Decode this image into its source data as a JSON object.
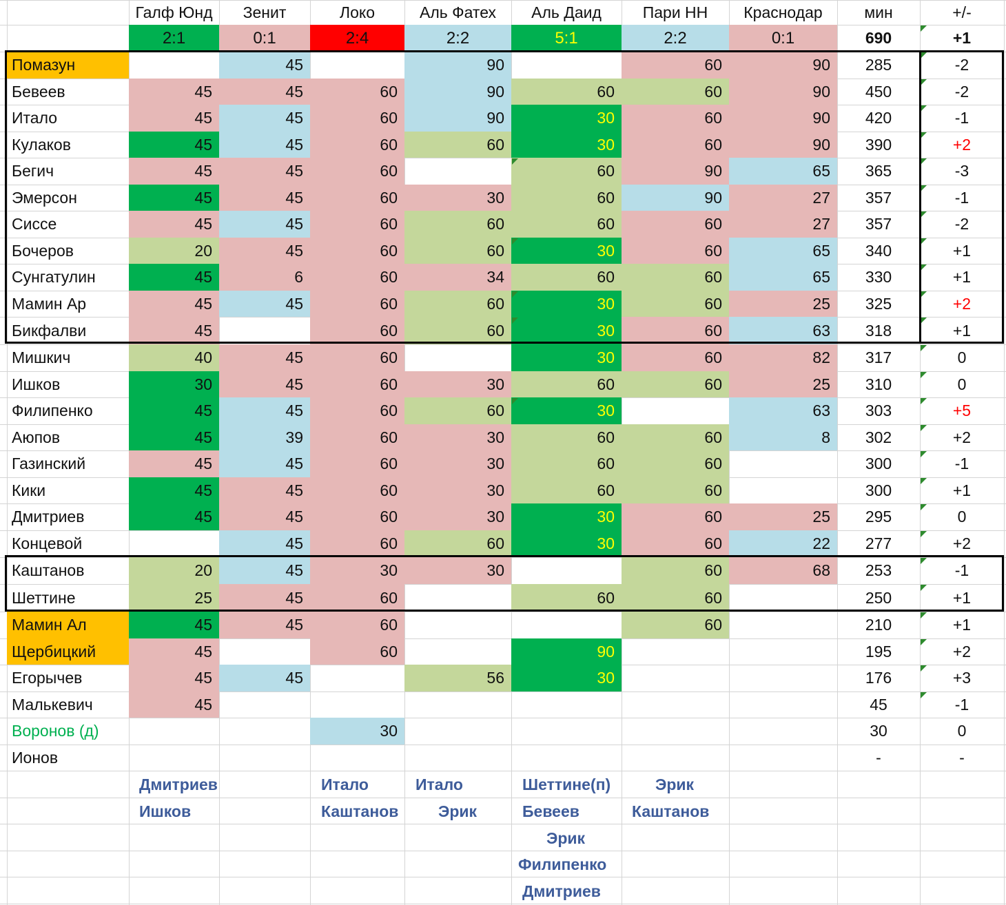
{
  "colors": {
    "pink": "#e6b8b7",
    "blue": "#b7dde8",
    "lgreen": "#c4d79b",
    "dgreen": "#00b050",
    "red": "#ff0000",
    "orange": "#ffc000",
    "plus_red": "#ff0000",
    "yellow_text": "#ffff00",
    "voronov_text": "#00b050",
    "sub_text": "#3e5c9a"
  },
  "header": {
    "columns": [
      "Галф Юнд",
      "Зенит",
      "Локо",
      "Аль Фатех",
      "Аль Даид",
      "Пари НН",
      "Краснодар"
    ],
    "min_label": "мин",
    "pm_label": "+/-",
    "scores": [
      {
        "text": "2:1",
        "fill": "dgreen",
        "text_color": ""
      },
      {
        "text": "0:1",
        "fill": "pink",
        "text_color": ""
      },
      {
        "text": "2:4",
        "fill": "red",
        "text_color": ""
      },
      {
        "text": "2:2",
        "fill": "blue",
        "text_color": ""
      },
      {
        "text": "5:1",
        "fill": "dgreen",
        "text_color": "yellow_text"
      },
      {
        "text": "2:2",
        "fill": "blue",
        "text_color": ""
      },
      {
        "text": "0:1",
        "fill": "pink",
        "text_color": ""
      }
    ],
    "total_minutes": "690",
    "total_pm": "+1"
  },
  "players": [
    {
      "name": "Помазун",
      "name_fill": "orange",
      "cells": [
        [
          "",
          ""
        ],
        [
          "45",
          "blue"
        ],
        [
          "",
          ""
        ],
        [
          "90",
          "blue"
        ],
        [
          "",
          ""
        ],
        [
          "60",
          "pink"
        ],
        [
          "90",
          "pink"
        ]
      ],
      "min": "285",
      "pm": "-2"
    },
    {
      "name": "Бевеев",
      "cells": [
        [
          "45",
          "pink"
        ],
        [
          "45",
          "pink"
        ],
        [
          "60",
          "pink"
        ],
        [
          "90",
          "blue"
        ],
        [
          "60",
          "lgreen"
        ],
        [
          "60",
          "lgreen"
        ],
        [
          "90",
          "pink"
        ]
      ],
      "min": "450",
      "pm": "-2"
    },
    {
      "name": "Итало",
      "cells": [
        [
          "45",
          "pink"
        ],
        [
          "45",
          "blue"
        ],
        [
          "60",
          "pink"
        ],
        [
          "90",
          "blue"
        ],
        [
          "30",
          "dgreen"
        ],
        [
          "60",
          "pink"
        ],
        [
          "90",
          "pink"
        ]
      ],
      "min": "420",
      "pm": "-1"
    },
    {
      "name": "Кулаков",
      "cells": [
        [
          "45",
          "dgreen"
        ],
        [
          "45",
          "blue"
        ],
        [
          "60",
          "pink"
        ],
        [
          "60",
          "lgreen"
        ],
        [
          "30",
          "dgreen"
        ],
        [
          "60",
          "pink"
        ],
        [
          "90",
          "pink"
        ]
      ],
      "min": "390",
      "pm": "+2",
      "pm_red": true
    },
    {
      "name": "Бегич",
      "cells": [
        [
          "45",
          "pink"
        ],
        [
          "45",
          "pink"
        ],
        [
          "60",
          "pink"
        ],
        [
          "",
          ""
        ],
        [
          "60",
          "lgreen"
        ],
        [
          "90",
          "pink"
        ],
        [
          "65",
          "blue"
        ]
      ],
      "min": "365",
      "pm": "-3"
    },
    {
      "name": "Эмерсон",
      "cells": [
        [
          "45",
          "dgreen"
        ],
        [
          "45",
          "pink"
        ],
        [
          "60",
          "pink"
        ],
        [
          "30",
          "pink"
        ],
        [
          "60",
          "lgreen"
        ],
        [
          "90",
          "blue"
        ],
        [
          "27",
          "pink"
        ]
      ],
      "min": "357",
      "pm": "-1"
    },
    {
      "name": "Сиссе",
      "cells": [
        [
          "45",
          "pink"
        ],
        [
          "45",
          "blue"
        ],
        [
          "60",
          "pink"
        ],
        [
          "60",
          "lgreen"
        ],
        [
          "60",
          "lgreen"
        ],
        [
          "60",
          "pink"
        ],
        [
          "27",
          "pink"
        ]
      ],
      "min": "357",
      "pm": "-2"
    },
    {
      "name": "Бочеров",
      "cells": [
        [
          "20",
          "lgreen"
        ],
        [
          "45",
          "pink"
        ],
        [
          "60",
          "pink"
        ],
        [
          "60",
          "lgreen"
        ],
        [
          "30",
          "dgreen"
        ],
        [
          "60",
          "pink"
        ],
        [
          "65",
          "blue"
        ]
      ],
      "min": "340",
      "pm": "+1"
    },
    {
      "name": "Сунгатулин",
      "cells": [
        [
          "45",
          "dgreen"
        ],
        [
          "6",
          "pink"
        ],
        [
          "60",
          "pink"
        ],
        [
          "34",
          "pink"
        ],
        [
          "60",
          "lgreen"
        ],
        [
          "60",
          "lgreen"
        ],
        [
          "65",
          "blue"
        ]
      ],
      "min": "330",
      "pm": "+1"
    },
    {
      "name": "Мамин Ар",
      "cells": [
        [
          "45",
          "pink"
        ],
        [
          "45",
          "blue"
        ],
        [
          "60",
          "pink"
        ],
        [
          "60",
          "lgreen"
        ],
        [
          "30",
          "dgreen"
        ],
        [
          "60",
          "lgreen"
        ],
        [
          "25",
          "pink"
        ]
      ],
      "min": "325",
      "pm": "+2",
      "pm_red": true
    },
    {
      "name": "Бикфалви",
      "cells": [
        [
          "45",
          "pink"
        ],
        [
          "",
          ""
        ],
        [
          "60",
          "pink"
        ],
        [
          "60",
          "lgreen"
        ],
        [
          "30",
          "dgreen"
        ],
        [
          "60",
          "pink"
        ],
        [
          "63",
          "blue"
        ]
      ],
      "min": "318",
      "pm": "+1"
    },
    {
      "name": "Мишкич",
      "cells": [
        [
          "40",
          "lgreen"
        ],
        [
          "45",
          "pink"
        ],
        [
          "60",
          "pink"
        ],
        [
          "",
          ""
        ],
        [
          "30",
          "dgreen"
        ],
        [
          "60",
          "pink"
        ],
        [
          "82",
          "pink"
        ]
      ],
      "min": "317",
      "pm": "0"
    },
    {
      "name": "Ишков",
      "cells": [
        [
          "30",
          "dgreen"
        ],
        [
          "45",
          "pink"
        ],
        [
          "60",
          "pink"
        ],
        [
          "30",
          "pink"
        ],
        [
          "60",
          "lgreen"
        ],
        [
          "60",
          "lgreen"
        ],
        [
          "25",
          "pink"
        ]
      ],
      "min": "310",
      "pm": "0"
    },
    {
      "name": "Филипенко",
      "cells": [
        [
          "45",
          "dgreen"
        ],
        [
          "45",
          "blue"
        ],
        [
          "60",
          "pink"
        ],
        [
          "60",
          "lgreen"
        ],
        [
          "30",
          "dgreen"
        ],
        [
          "",
          ""
        ],
        [
          "63",
          "blue"
        ]
      ],
      "min": "303",
      "pm": "+5",
      "pm_red": true
    },
    {
      "name": "Аюпов",
      "cells": [
        [
          "45",
          "dgreen"
        ],
        [
          "39",
          "blue"
        ],
        [
          "60",
          "pink"
        ],
        [
          "30",
          "pink"
        ],
        [
          "60",
          "lgreen"
        ],
        [
          "60",
          "lgreen"
        ],
        [
          "8",
          "blue"
        ]
      ],
      "min": "302",
      "pm": "+2"
    },
    {
      "name": "Газинский",
      "cells": [
        [
          "45",
          "pink"
        ],
        [
          "45",
          "blue"
        ],
        [
          "60",
          "pink"
        ],
        [
          "30",
          "pink"
        ],
        [
          "60",
          "lgreen"
        ],
        [
          "60",
          "lgreen"
        ],
        [
          "",
          ""
        ]
      ],
      "min": "300",
      "pm": "-1"
    },
    {
      "name": "Кики",
      "cells": [
        [
          "45",
          "dgreen"
        ],
        [
          "45",
          "pink"
        ],
        [
          "60",
          "pink"
        ],
        [
          "30",
          "pink"
        ],
        [
          "60",
          "lgreen"
        ],
        [
          "60",
          "lgreen"
        ],
        [
          "",
          ""
        ]
      ],
      "min": "300",
      "pm": "+1"
    },
    {
      "name": "Дмитриев",
      "cells": [
        [
          "45",
          "dgreen"
        ],
        [
          "45",
          "pink"
        ],
        [
          "60",
          "pink"
        ],
        [
          "30",
          "pink"
        ],
        [
          "30",
          "dgreen"
        ],
        [
          "60",
          "pink"
        ],
        [
          "25",
          "pink"
        ]
      ],
      "min": "295",
      "pm": "0"
    },
    {
      "name": "Концевой",
      "cells": [
        [
          "",
          ""
        ],
        [
          "45",
          "blue"
        ],
        [
          "60",
          "pink"
        ],
        [
          "60",
          "lgreen"
        ],
        [
          "30",
          "dgreen"
        ],
        [
          "60",
          "pink"
        ],
        [
          "22",
          "blue"
        ]
      ],
      "min": "277",
      "pm": "+2"
    },
    {
      "name": "Каштанов",
      "cells": [
        [
          "20",
          "lgreen"
        ],
        [
          "45",
          "blue"
        ],
        [
          "30",
          "pink"
        ],
        [
          "30",
          "pink"
        ],
        [
          "",
          ""
        ],
        [
          "60",
          "lgreen"
        ],
        [
          "68",
          "pink"
        ]
      ],
      "min": "253",
      "pm": "-1"
    },
    {
      "name": "Шеттине",
      "cells": [
        [
          "25",
          "lgreen"
        ],
        [
          "45",
          "pink"
        ],
        [
          "60",
          "pink"
        ],
        [
          "",
          ""
        ],
        [
          "60",
          "lgreen"
        ],
        [
          "60",
          "lgreen"
        ],
        [
          "",
          ""
        ]
      ],
      "min": "250",
      "pm": "+1"
    },
    {
      "name": "Мамин Ал",
      "name_fill": "orange",
      "cells": [
        [
          "45",
          "dgreen"
        ],
        [
          "45",
          "pink"
        ],
        [
          "60",
          "pink"
        ],
        [
          "",
          ""
        ],
        [
          "",
          ""
        ],
        [
          "60",
          "lgreen"
        ],
        [
          "",
          ""
        ]
      ],
      "min": "210",
      "pm": "+1"
    },
    {
      "name": "Щербицкий",
      "name_fill": "orange",
      "cells": [
        [
          "45",
          "pink"
        ],
        [
          "",
          ""
        ],
        [
          "60",
          "pink"
        ],
        [
          "",
          ""
        ],
        [
          "90",
          "dgreen"
        ],
        [
          "",
          ""
        ],
        [
          "",
          ""
        ]
      ],
      "min": "195",
      "pm": "+2"
    },
    {
      "name": "Егорычев",
      "cells": [
        [
          "45",
          "pink"
        ],
        [
          "45",
          "blue"
        ],
        [
          "",
          ""
        ],
        [
          "56",
          "lgreen"
        ],
        [
          "30",
          "dgreen"
        ],
        [
          "",
          ""
        ],
        [
          "",
          ""
        ]
      ],
      "min": "176",
      "pm": "+3"
    },
    {
      "name": "Малькевич",
      "cells": [
        [
          "45",
          "pink"
        ],
        [
          "",
          ""
        ],
        [
          "",
          ""
        ],
        [
          "",
          ""
        ],
        [
          "",
          ""
        ],
        [
          "",
          ""
        ],
        [
          "",
          ""
        ]
      ],
      "min": "45",
      "pm": "-1"
    },
    {
      "name": "Воронов (д)",
      "name_color": "voronov_text",
      "cells": [
        [
          "",
          ""
        ],
        [
          "",
          ""
        ],
        [
          "30",
          "blue"
        ],
        [
          "",
          ""
        ],
        [
          "",
          ""
        ],
        [
          "",
          ""
        ],
        [
          "",
          ""
        ]
      ],
      "min": "30",
      "pm": "0"
    },
    {
      "name": "Ионов",
      "cells": [
        [
          "",
          ""
        ],
        [
          "",
          ""
        ],
        [
          "",
          ""
        ],
        [
          "",
          ""
        ],
        [
          "",
          ""
        ],
        [
          "",
          ""
        ],
        [
          "",
          ""
        ]
      ],
      "min": "-",
      "pm": "-"
    }
  ],
  "scorers": [
    [
      "Дмитриев",
      "Ишков"
    ],
    [],
    [
      "Итало",
      "Каштанов"
    ],
    [
      "Итало",
      "Эрик"
    ],
    [
      "Шеттине(п)",
      "Бевеев",
      "Эрик",
      "Филипенко",
      "Дмитриев"
    ],
    [
      "Эрик",
      "Каштанов"
    ],
    []
  ]
}
